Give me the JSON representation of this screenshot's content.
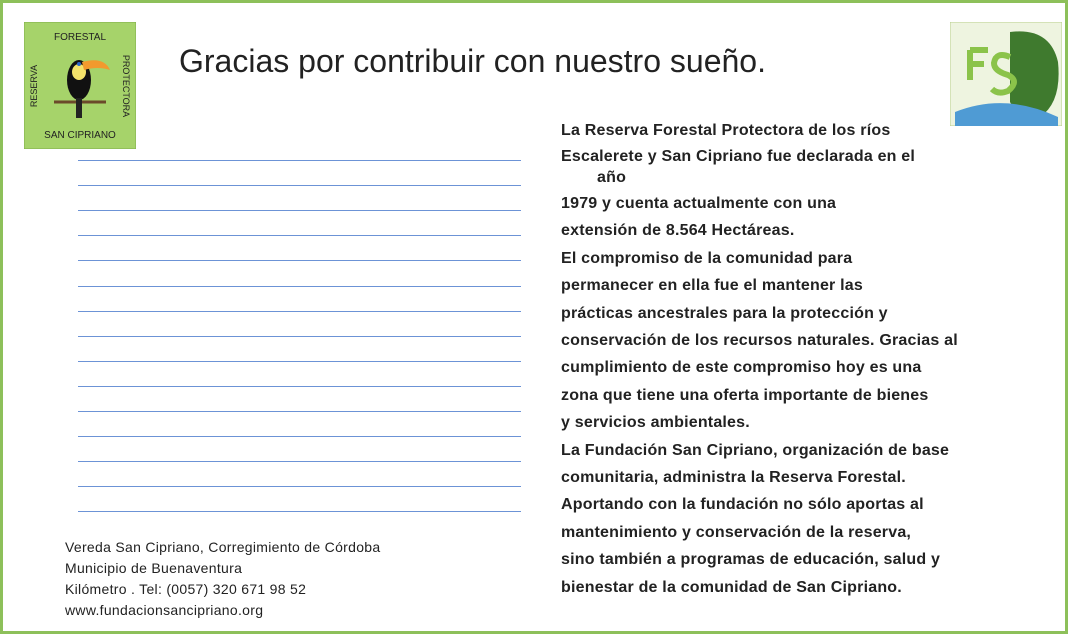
{
  "header": {
    "title": "Gracias por contribuir con nuestro sueño."
  },
  "logo": {
    "top": "FORESTAL",
    "left": "RESERVA",
    "right": "PROTECTORA",
    "bottom": "SAN CIPRIANO"
  },
  "body": {
    "lines": [
      "La Reserva Forestal Protectora de los ríos",
      "Escalerete y San Cipriano  fue declarada en el",
      "año",
      "1979 y cuenta actualmente con una",
      "extensión de 8.564 Hectáreas.",
      "El compromiso de la comunidad para",
      "permanecer en ella fue el mantener las",
      "prácticas ancestrales para la protección y",
      "conservación de los recursos naturales. Gracias al",
      "cumplimiento de este compromiso hoy es una",
      "zona que tiene una oferta importante de bienes",
      "y servicios ambientales.",
      "La Fundación San Cipriano, organización de base",
      "comunitaria, administra la Reserva Forestal.",
      "Aportando con la fundación no sólo aportas al",
      "mantenimiento y conservación de la reserva,",
      "sino también a programas de educación, salud y",
      "bienestar de la comunidad de San Cipriano."
    ]
  },
  "footer": {
    "lines": [
      "Vereda San Cipriano, Corregimiento de Córdoba",
      "Municipio de Buenaventura",
      "Kilómetro . Tel: (0057) 320 671 98 52",
      "www.fundacionsancipriano.org"
    ]
  }
}
